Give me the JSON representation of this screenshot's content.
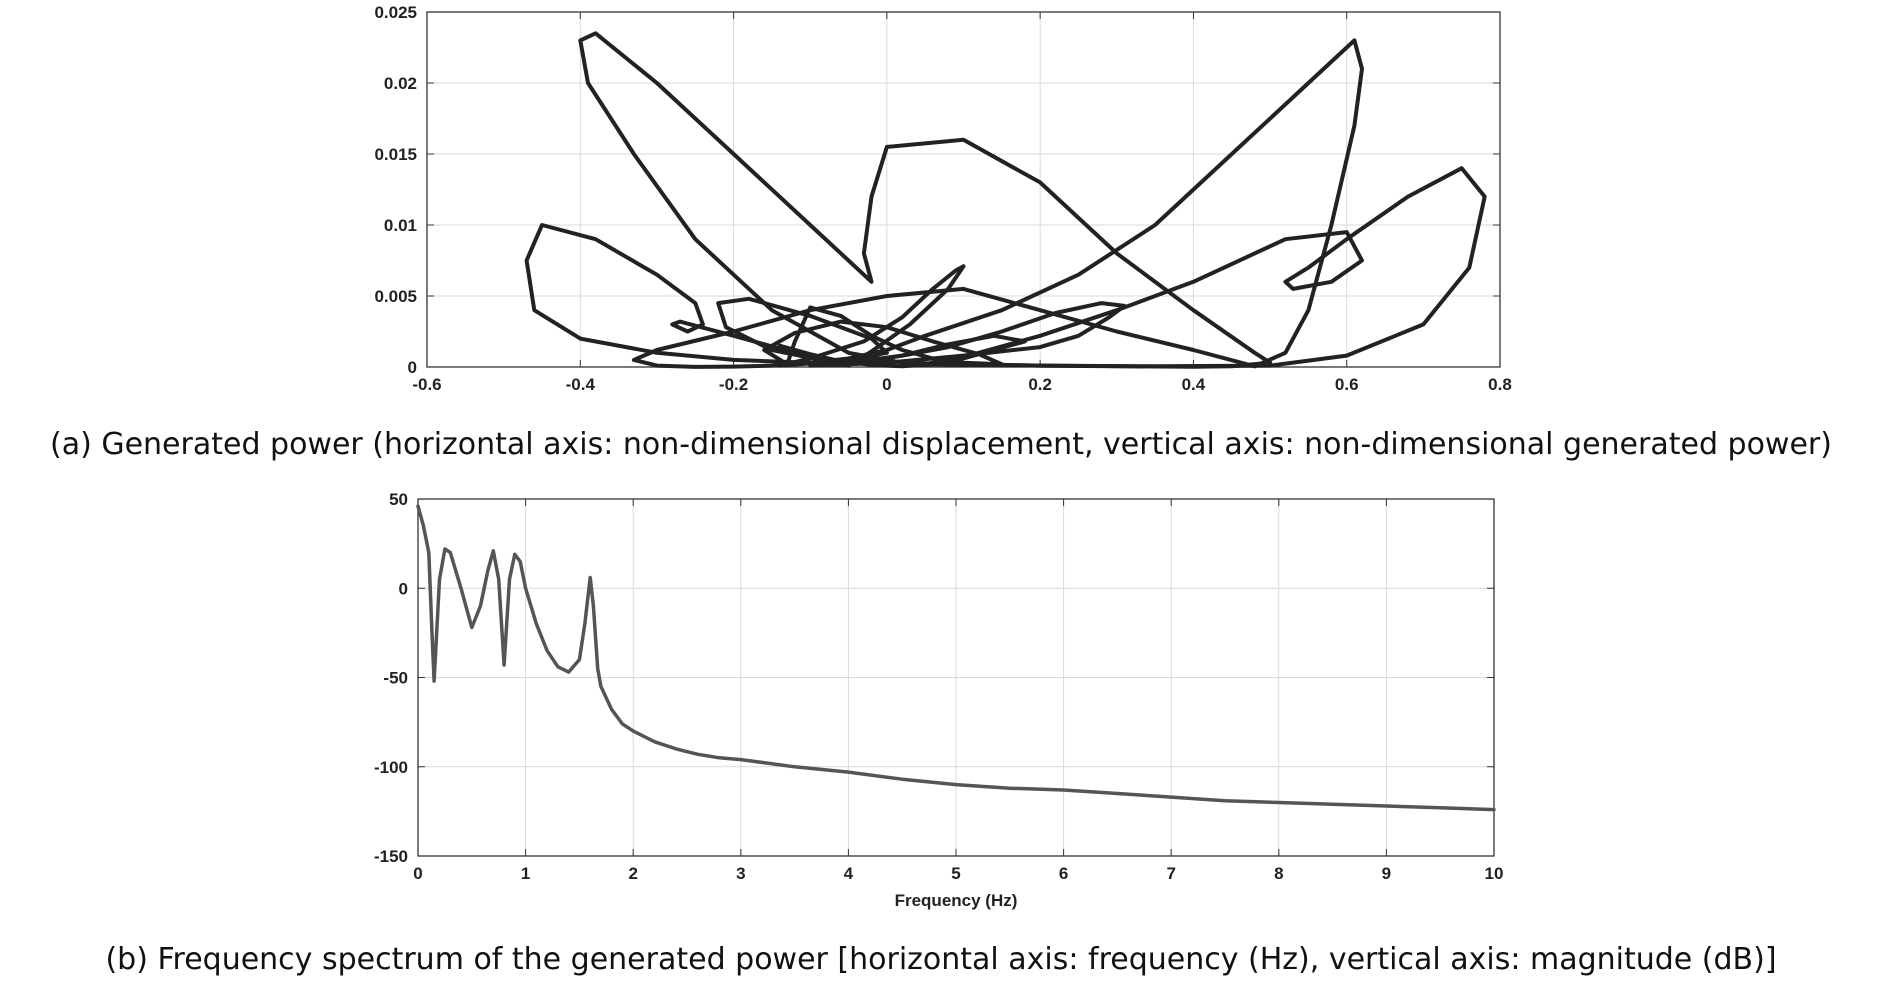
{
  "captions": {
    "a": "(a) Generated power (horizontal axis: non-dimensional displacement, vertical axis: non-dimensional generated power)",
    "b": "(b) Frequency spectrum of the generated power [horizontal axis: frequency (Hz), vertical axis: magnitude (dB)]"
  },
  "colors": {
    "curve_a": "#222222",
    "curve_b": "#555555",
    "grid": "#d9d9d9",
    "axis": "#333333"
  },
  "chart_data": [
    {
      "type": "line",
      "title": "",
      "xlabel": "",
      "ylabel": "",
      "xlim": [
        -0.6,
        0.8
      ],
      "ylim": [
        0,
        0.025
      ],
      "xticks": [
        "-0.6",
        "-0.4",
        "-0.2",
        "0",
        "0.2",
        "0.4",
        "0.6",
        "0.8"
      ],
      "yticks": [
        "0",
        "0.005",
        "0.01",
        "0.015",
        "0.02",
        "0.025"
      ],
      "grid": true,
      "series": [
        {
          "x": [
            0.02,
            -0.05,
            -0.15,
            -0.25,
            -0.33,
            -0.39,
            -0.4,
            -0.38,
            -0.3,
            -0.2,
            -0.1,
            -0.05,
            -0.02,
            -0.03,
            -0.02,
            0.0,
            0.1,
            0.2,
            0.3,
            0.4,
            0.48,
            0.5,
            0.45,
            0.4,
            0.3,
            0.2,
            0.1,
            0.02
          ],
          "y": [
            0.0003,
            0.001,
            0.004,
            0.009,
            0.015,
            0.02,
            0.023,
            0.0235,
            0.02,
            0.015,
            0.01,
            0.0075,
            0.006,
            0.008,
            0.012,
            0.0155,
            0.016,
            0.013,
            0.008,
            0.004,
            0.001,
            0.0003,
            5e-05,
            2e-05,
            5e-05,
            0.0001,
            0.0002,
            0.0003
          ]
        },
        {
          "x": [
            0.48,
            0.52,
            0.55,
            0.58,
            0.61,
            0.62,
            0.61,
            0.55,
            0.45,
            0.35,
            0.25,
            0.15,
            0.05,
            0.0,
            -0.05,
            -0.1,
            -0.15,
            -0.2,
            -0.25,
            -0.3,
            -0.33,
            -0.3,
            -0.2,
            -0.1,
            0.0,
            0.1,
            0.2,
            0.3,
            0.4,
            0.48
          ],
          "y": [
            5e-05,
            0.001,
            0.004,
            0.01,
            0.017,
            0.021,
            0.023,
            0.02,
            0.015,
            0.01,
            0.0065,
            0.004,
            0.0022,
            0.0012,
            0.0006,
            0.0003,
            0.0001,
            3e-05,
            1e-05,
            0.0001,
            0.0005,
            0.0012,
            0.0025,
            0.004,
            0.005,
            0.0055,
            0.004,
            0.0025,
            0.0012,
            5e-05
          ]
        },
        {
          "x": [
            0.05,
            0.2,
            0.35,
            0.5,
            0.6,
            0.7,
            0.76,
            0.78,
            0.75,
            0.68,
            0.6,
            0.55,
            0.52,
            0.53,
            0.58,
            0.62,
            0.6,
            0.52,
            0.4,
            0.3,
            0.2,
            0.12,
            0.05
          ],
          "y": [
            0.0002,
            0.0001,
            5e-05,
            0.0001,
            0.0008,
            0.003,
            0.007,
            0.012,
            0.014,
            0.012,
            0.009,
            0.007,
            0.006,
            0.0055,
            0.006,
            0.0075,
            0.0095,
            0.009,
            0.006,
            0.004,
            0.0022,
            0.001,
            0.0002
          ]
        },
        {
          "x": [
            -0.05,
            -0.2,
            -0.3,
            -0.4,
            -0.46,
            -0.47,
            -0.45,
            -0.38,
            -0.3,
            -0.25,
            -0.24,
            -0.26,
            -0.28,
            -0.27,
            -0.2,
            -0.12,
            -0.05
          ],
          "y": [
            0.0002,
            0.0005,
            0.001,
            0.002,
            0.004,
            0.0075,
            0.01,
            0.009,
            0.0065,
            0.0045,
            0.003,
            0.0025,
            0.003,
            0.0032,
            0.0022,
            0.001,
            0.0002
          ]
        },
        {
          "x": [
            -0.05,
            -0.15,
            -0.21,
            -0.22,
            -0.18,
            -0.1,
            -0.02,
            0.0,
            -0.06,
            -0.14,
            -0.1,
            -0.03,
            0.02,
            0.06,
            0.09,
            0.1,
            0.08,
            0.03,
            -0.02,
            -0.05
          ],
          "y": [
            0.0001,
            0.0012,
            0.0028,
            0.0045,
            0.0048,
            0.0036,
            0.002,
            0.001,
            0.0004,
            0.0001,
            0.0006,
            0.0018,
            0.0035,
            0.0055,
            0.0068,
            0.0071,
            0.0055,
            0.003,
            0.0011,
            0.0001
          ]
        },
        {
          "x": [
            -0.1,
            0.0,
            0.1,
            0.2,
            0.25,
            0.29,
            0.31,
            0.28,
            0.22,
            0.15,
            0.08,
            0.02,
            -0.05,
            -0.1
          ],
          "y": [
            0.0001,
            0.0003,
            0.0008,
            0.0014,
            0.0022,
            0.0035,
            0.0043,
            0.0045,
            0.0038,
            0.0025,
            0.0014,
            0.0008,
            0.0003,
            0.0001
          ]
        },
        {
          "x": [
            -0.13,
            -0.12,
            -0.1,
            -0.06,
            -0.02,
            0.02,
            0.06,
            0.1,
            0.15,
            0.12,
            0.06,
            0.0,
            -0.06,
            -0.12,
            -0.16,
            -0.13
          ],
          "y": [
            0.0002,
            0.0018,
            0.0042,
            0.0036,
            0.0022,
            0.0012,
            0.0006,
            0.0003,
            0.0002,
            0.0009,
            0.0018,
            0.0028,
            0.0032,
            0.0024,
            0.0012,
            0.0002
          ]
        },
        {
          "x": [
            -0.14,
            -0.1,
            -0.06,
            -0.02,
            0.02,
            0.06,
            0.1,
            0.14,
            0.18,
            0.14,
            0.08,
            0.02,
            -0.04,
            -0.1,
            -0.14
          ],
          "y": [
            0.0015,
            0.0009,
            0.0004,
            0.00015,
            5e-05,
            0.0002,
            0.0006,
            0.0012,
            0.0018,
            0.0022,
            0.0016,
            0.0008,
            0.0003,
            0.0007,
            0.0015
          ]
        }
      ]
    },
    {
      "type": "line",
      "title": "",
      "xlabel": "Frequency (Hz)",
      "ylabel": "",
      "xlim": [
        0,
        10
      ],
      "ylim": [
        -150,
        50
      ],
      "xticks": [
        "0",
        "1",
        "2",
        "3",
        "4",
        "5",
        "6",
        "7",
        "8",
        "9",
        "10"
      ],
      "yticks": [
        "50",
        "0",
        "-50",
        "-100",
        "-150"
      ],
      "grid": true,
      "series": [
        {
          "x": [
            0.0,
            0.05,
            0.1,
            0.13,
            0.15,
            0.2,
            0.25,
            0.3,
            0.4,
            0.5,
            0.58,
            0.65,
            0.7,
            0.75,
            0.8,
            0.85,
            0.9,
            0.95,
            1.0,
            1.1,
            1.2,
            1.3,
            1.4,
            1.5,
            1.55,
            1.6,
            1.63,
            1.67,
            1.7,
            1.8,
            1.9,
            2.0,
            2.2,
            2.4,
            2.6,
            2.8,
            3.0,
            3.5,
            4.0,
            4.5,
            5.0,
            5.5,
            6.0,
            6.5,
            7.0,
            7.5,
            8.0,
            8.5,
            9.0,
            9.5,
            10.0
          ],
          "y": [
            46,
            35,
            20,
            -25,
            -52,
            5,
            22,
            20,
            0,
            -22,
            -10,
            10,
            21,
            5,
            -43,
            5,
            19,
            15,
            0,
            -20,
            -35,
            -44,
            -47,
            -40,
            -20,
            6,
            -10,
            -45,
            -55,
            -68,
            -76,
            -80,
            -86,
            -90,
            -93,
            -95,
            -96,
            -100,
            -103,
            -107,
            -110,
            -112,
            -113,
            -115,
            -117,
            -119,
            -120,
            -121,
            -122,
            -123,
            -124
          ]
        }
      ]
    }
  ]
}
